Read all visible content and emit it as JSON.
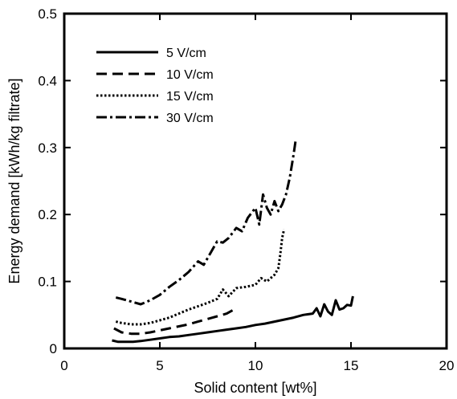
{
  "chart_data": {
    "type": "line",
    "title": "",
    "xlabel": "Solid content [wt%]",
    "ylabel": "Energy demand [kWh/kg filtrate]",
    "xlim": [
      0,
      20
    ],
    "ylim": [
      0,
      0.5
    ],
    "xticks": [
      0,
      5,
      10,
      15,
      20
    ],
    "xtick_labels": [
      "0",
      "5",
      "10",
      "15",
      "20"
    ],
    "yticks": [
      0,
      0.1,
      0.2,
      0.3,
      0.4,
      0.5
    ],
    "ytick_labels": [
      "0",
      "0.1",
      "0.2",
      "0.3",
      "0.4",
      "0.5"
    ],
    "grid": false,
    "legend_position": "top-left",
    "series": [
      {
        "name": "5 V/cm",
        "style": "solid",
        "color": "#000000",
        "x": [
          2.5,
          2.8,
          3.2,
          3.6,
          4.0,
          4.5,
          5.0,
          5.5,
          6.0,
          6.5,
          7.0,
          7.5,
          8.0,
          8.5,
          9.0,
          9.5,
          10.0,
          10.5,
          11.0,
          11.5,
          12.0,
          12.5,
          13.0,
          13.2,
          13.4,
          13.6,
          13.8,
          14.0,
          14.2,
          14.4,
          14.6,
          14.8,
          15.0,
          15.1
        ],
        "y": [
          0.012,
          0.01,
          0.01,
          0.01,
          0.011,
          0.013,
          0.015,
          0.017,
          0.018,
          0.02,
          0.022,
          0.024,
          0.026,
          0.028,
          0.03,
          0.032,
          0.035,
          0.037,
          0.04,
          0.043,
          0.046,
          0.05,
          0.052,
          0.06,
          0.048,
          0.066,
          0.055,
          0.05,
          0.072,
          0.058,
          0.06,
          0.065,
          0.064,
          0.078
        ]
      },
      {
        "name": "10 V/cm",
        "style": "dashed",
        "color": "#000000",
        "x": [
          2.6,
          3.0,
          3.5,
          4.0,
          4.5,
          5.0,
          5.5,
          6.0,
          6.5,
          7.0,
          7.5,
          8.0,
          8.5,
          9.0
        ],
        "y": [
          0.03,
          0.024,
          0.022,
          0.022,
          0.024,
          0.027,
          0.03,
          0.033,
          0.036,
          0.04,
          0.044,
          0.048,
          0.052,
          0.06
        ]
      },
      {
        "name": "15 V/cm",
        "style": "dotted",
        "color": "#000000",
        "x": [
          2.7,
          3.0,
          3.5,
          4.0,
          4.5,
          5.0,
          5.5,
          6.0,
          6.5,
          7.0,
          7.5,
          8.0,
          8.3,
          8.6,
          9.0,
          9.5,
          10.0,
          10.3,
          10.6,
          11.0,
          11.2,
          11.3,
          11.4,
          11.5
        ],
        "y": [
          0.04,
          0.038,
          0.036,
          0.036,
          0.038,
          0.042,
          0.046,
          0.052,
          0.058,
          0.063,
          0.068,
          0.074,
          0.088,
          0.078,
          0.09,
          0.092,
          0.095,
          0.105,
          0.1,
          0.11,
          0.12,
          0.14,
          0.165,
          0.178
        ]
      },
      {
        "name": "30 V/cm",
        "style": "dashdot",
        "color": "#000000",
        "x": [
          2.7,
          3.0,
          3.5,
          4.0,
          4.5,
          5.0,
          5.5,
          6.0,
          6.5,
          7.0,
          7.3,
          7.6,
          8.0,
          8.3,
          8.6,
          9.0,
          9.3,
          9.6,
          10.0,
          10.2,
          10.4,
          10.6,
          10.8,
          11.0,
          11.2,
          11.4,
          11.6,
          11.8,
          12.0,
          12.1
        ],
        "y": [
          0.076,
          0.074,
          0.07,
          0.066,
          0.072,
          0.08,
          0.092,
          0.102,
          0.114,
          0.13,
          0.125,
          0.14,
          0.16,
          0.158,
          0.165,
          0.18,
          0.175,
          0.195,
          0.21,
          0.185,
          0.23,
          0.21,
          0.2,
          0.22,
          0.205,
          0.215,
          0.23,
          0.255,
          0.29,
          0.31
        ]
      }
    ]
  }
}
